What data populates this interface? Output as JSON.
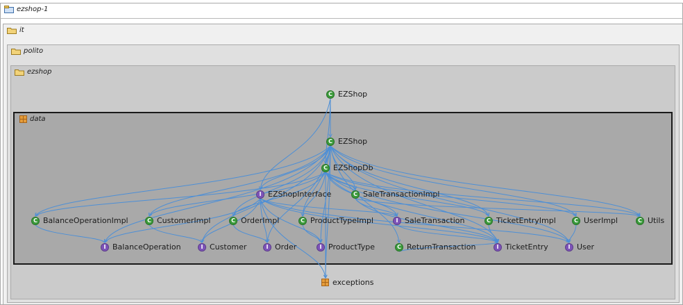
{
  "packages": {
    "root": {
      "label": "ezshop-1"
    },
    "it": {
      "label": "it"
    },
    "polito": {
      "label": "polito"
    },
    "ezshop": {
      "label": "ezshop"
    },
    "data": {
      "label": "data"
    }
  },
  "nodes": [
    {
      "id": "ezshop_top",
      "kind": "C",
      "label": "EZShop"
    },
    {
      "id": "ezshop",
      "kind": "C",
      "label": "EZShop"
    },
    {
      "id": "ezshopdb",
      "kind": "C",
      "label": "EZShopDb"
    },
    {
      "id": "ezshopinterface",
      "kind": "I",
      "label": "EZShopInterface"
    },
    {
      "id": "saletransactionimpl",
      "kind": "C",
      "label": "SaleTransactionImpl"
    },
    {
      "id": "balanceoperationimpl",
      "kind": "C",
      "label": "BalanceOperationImpl"
    },
    {
      "id": "customerimpl",
      "kind": "C",
      "label": "CustomerImpl"
    },
    {
      "id": "orderimpl",
      "kind": "C",
      "label": "OrderImpl"
    },
    {
      "id": "producttypeimpl",
      "kind": "C",
      "label": "ProductTypeImpl"
    },
    {
      "id": "saletransaction",
      "kind": "I",
      "label": "SaleTransaction"
    },
    {
      "id": "ticketentryimpl",
      "kind": "C",
      "label": "TicketEntryImpl"
    },
    {
      "id": "userimpl",
      "kind": "C",
      "label": "UserImpl"
    },
    {
      "id": "utils",
      "kind": "C",
      "label": "Utils"
    },
    {
      "id": "balanceoperation",
      "kind": "I",
      "label": "BalanceOperation"
    },
    {
      "id": "customer",
      "kind": "I",
      "label": "Customer"
    },
    {
      "id": "order",
      "kind": "I",
      "label": "Order"
    },
    {
      "id": "producttype",
      "kind": "I",
      "label": "ProductType"
    },
    {
      "id": "returntransaction",
      "kind": "C",
      "label": "ReturnTransaction"
    },
    {
      "id": "ticketentry",
      "kind": "I",
      "label": "TicketEntry"
    },
    {
      "id": "user",
      "kind": "I",
      "label": "User"
    },
    {
      "id": "exceptions",
      "kind": "P",
      "label": "exceptions"
    }
  ],
  "colors": {
    "edge": "#4d8fd6",
    "class": "#3a9a3a",
    "interface": "#7d53b8"
  }
}
